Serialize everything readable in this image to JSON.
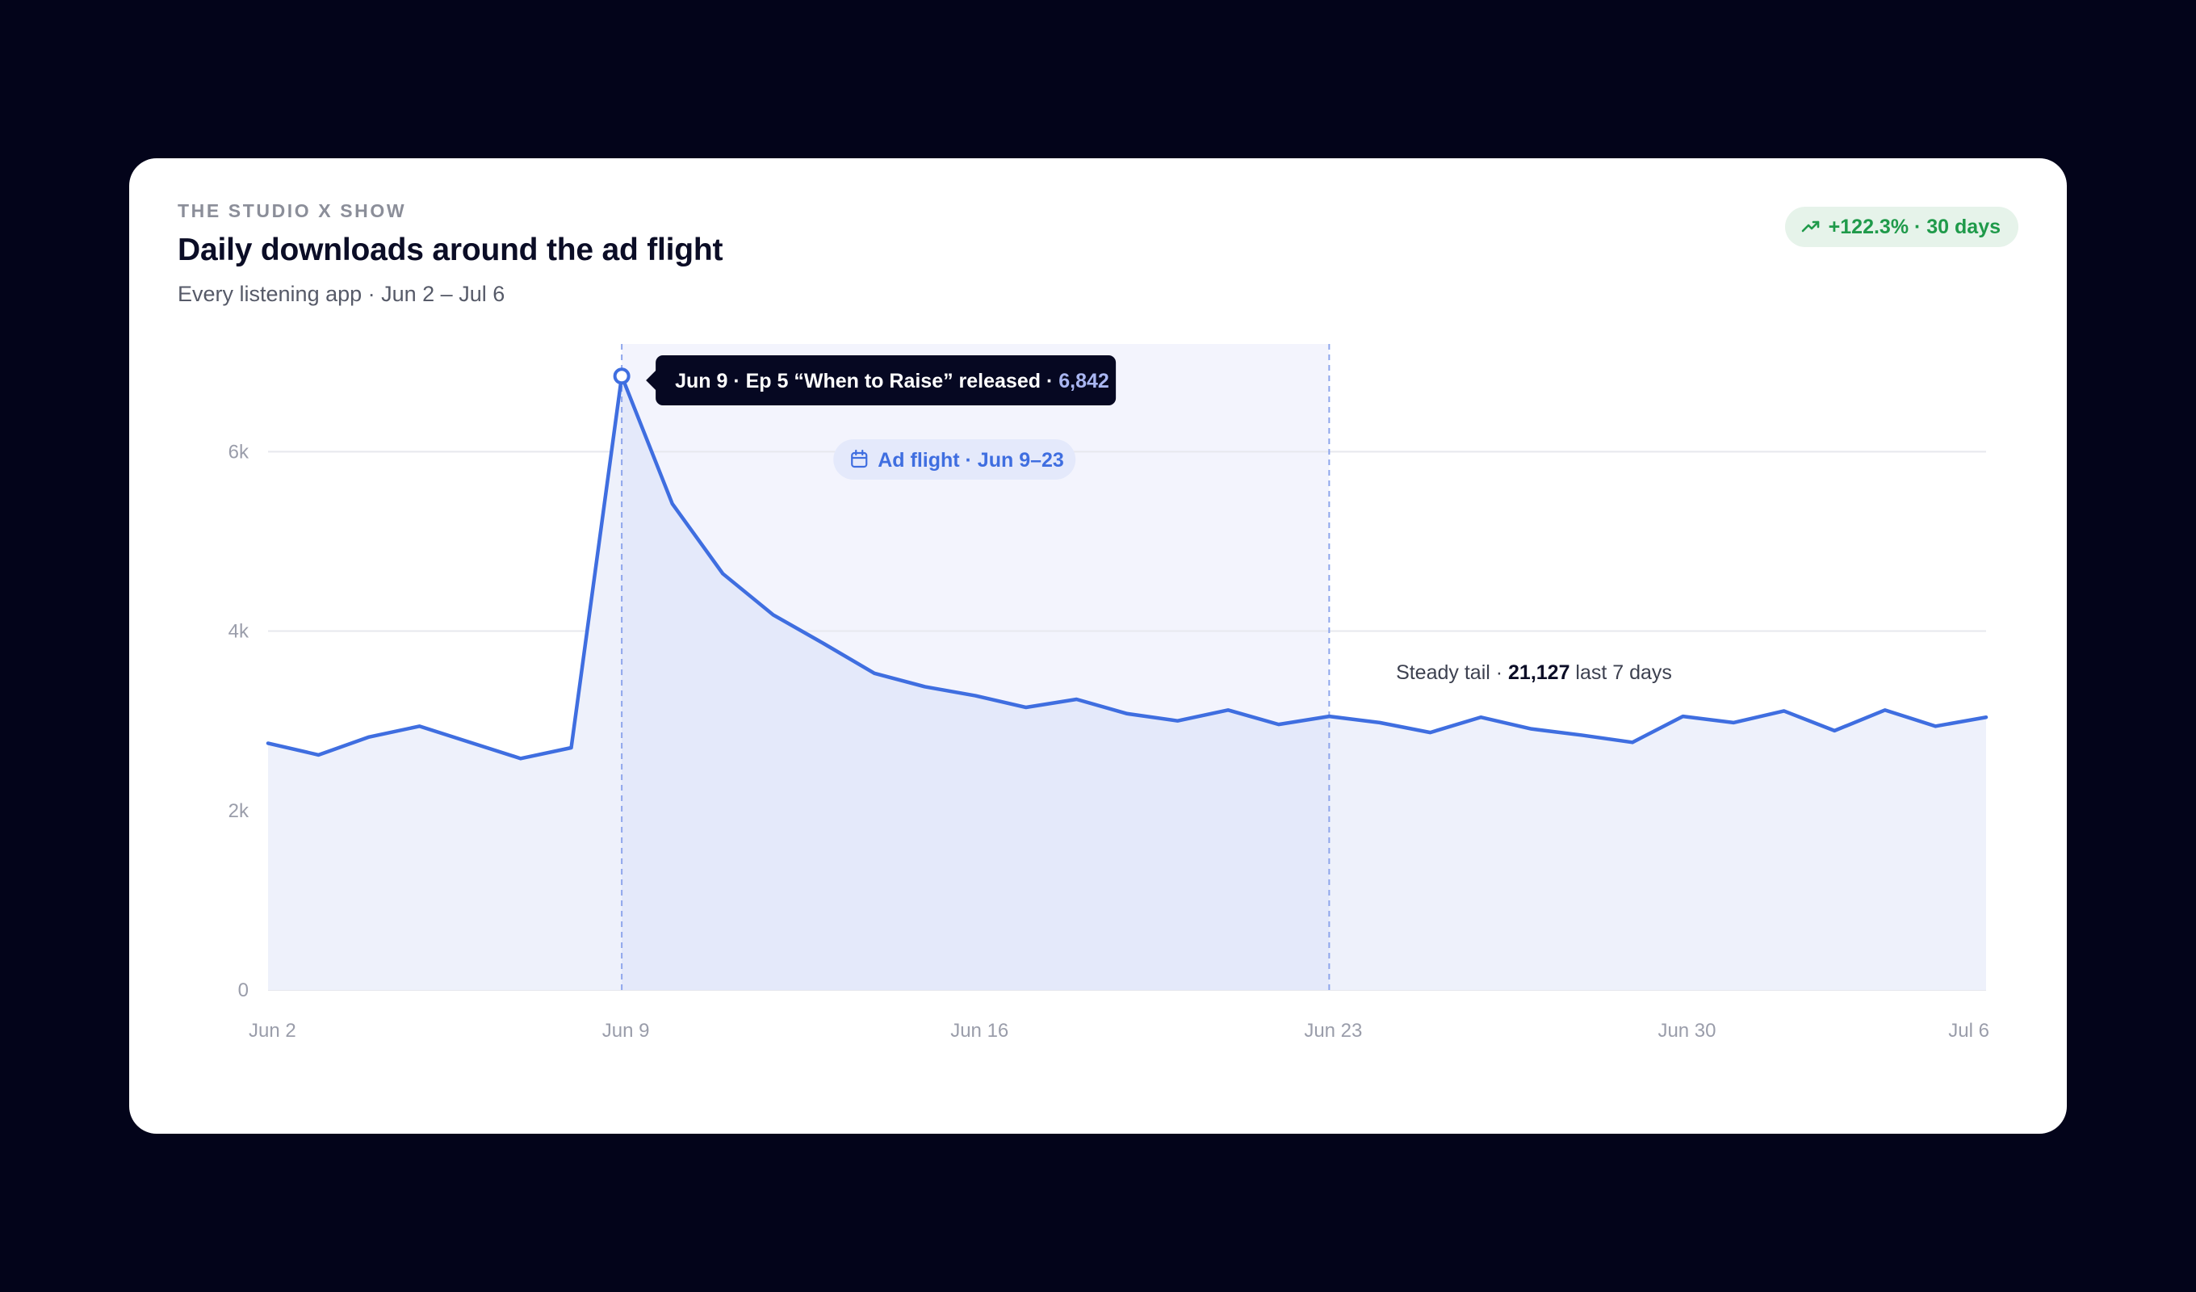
{
  "header": {
    "eyebrow": "THE STUDIO X SHOW",
    "title": "Daily downloads around the ad flight",
    "subtitle": "Every listening app · Jun 2 – Jul 6"
  },
  "badge": {
    "text": "+122.3% · 30 days",
    "icon": "trending-up-icon",
    "color": "#1f9a4a"
  },
  "colors": {
    "line": "#3f6ee0",
    "area": "#eef1fb",
    "flight_band": "#f3f4fd",
    "flight_area": "#e4e9fa",
    "tooltip_bg": "#060822",
    "tooltip_value": "#a9b6f2"
  },
  "chart_data": {
    "type": "area",
    "x_start": "Jun 2",
    "x": [
      "Jun 2",
      "Jun 3",
      "Jun 4",
      "Jun 5",
      "Jun 6",
      "Jun 7",
      "Jun 8",
      "Jun 9",
      "Jun 10",
      "Jun 11",
      "Jun 12",
      "Jun 13",
      "Jun 14",
      "Jun 15",
      "Jun 16",
      "Jun 17",
      "Jun 18",
      "Jun 19",
      "Jun 20",
      "Jun 21",
      "Jun 22",
      "Jun 23",
      "Jun 24",
      "Jun 25",
      "Jun 26",
      "Jun 27",
      "Jun 28",
      "Jun 29",
      "Jun 30",
      "Jul 1",
      "Jul 2",
      "Jul 3",
      "Jul 4",
      "Jul 5",
      "Jul 6"
    ],
    "values": [
      2750,
      2620,
      2820,
      2940,
      2760,
      2580,
      2700,
      6842,
      5420,
      4640,
      4180,
      3860,
      3530,
      3380,
      3280,
      3150,
      3240,
      3080,
      3000,
      3120,
      2960,
      3050,
      2980,
      2870,
      3040,
      2910,
      2840,
      2760,
      3050,
      2980,
      3110,
      2890,
      3120,
      2940,
      3040
    ],
    "yticks": [
      0,
      2000,
      4000,
      6000
    ],
    "ytick_labels": [
      "0",
      "2k",
      "4k",
      "6k"
    ],
    "ylim": [
      0,
      7200
    ],
    "xticks": [
      "Jun 2",
      "Jun 9",
      "Jun 16",
      "Jun 23",
      "Jun 30",
      "Jul 6"
    ],
    "grid": true,
    "flight": {
      "start": "Jun 9",
      "end": "Jun 23",
      "label": "Ad flight · Jun 9–23",
      "icon": "calendar-icon"
    },
    "peak": {
      "date": "Jun 9",
      "label": "Jun 9 · Ep 5 “When to Raise” released · ",
      "value_label": "6,842",
      "value": 6842
    },
    "tail": {
      "prefix": "Steady tail · ",
      "value": "21,127",
      "suffix": " last 7 days"
    }
  }
}
